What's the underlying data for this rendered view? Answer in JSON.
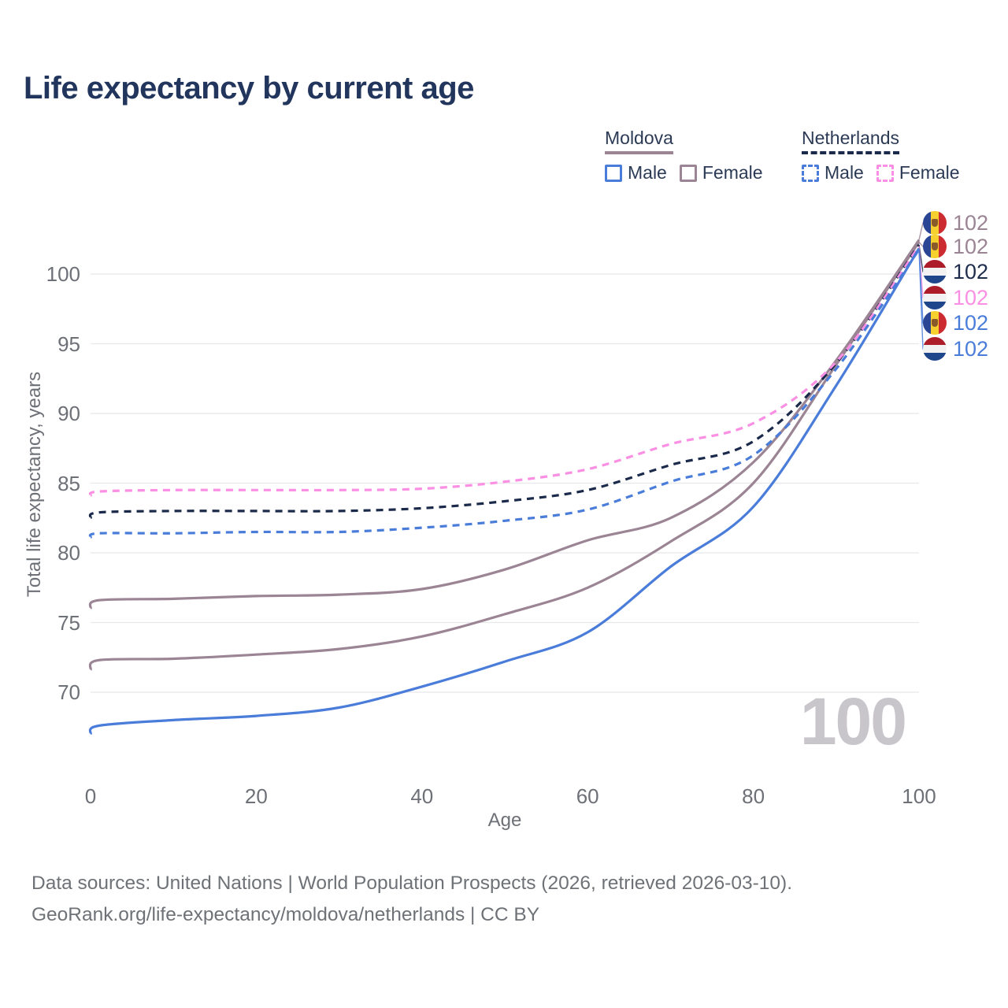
{
  "title": "Life expectancy by current age",
  "legend": {
    "groups": [
      {
        "label": "Moldova",
        "line_style": "solid",
        "underline_color": "#9b8494",
        "items": [
          {
            "label": "Male",
            "color": "#4a7cd9",
            "dashed": false
          },
          {
            "label": "Female",
            "color": "#9b8494",
            "dashed": false
          }
        ]
      },
      {
        "label": "Netherlands",
        "line_style": "dashed",
        "underline_color": "#1b2a4a",
        "items": [
          {
            "label": "Male",
            "color": "#4a7cd9",
            "dashed": true
          },
          {
            "label": "Female",
            "color": "#fa8fe3",
            "dashed": true
          }
        ]
      }
    ]
  },
  "chart_data": {
    "type": "line",
    "title": "Life expectancy by current age",
    "xlabel": "Age",
    "ylabel": "Total life expectancy, years",
    "x_ticks": [
      0,
      20,
      40,
      60,
      80,
      100
    ],
    "y_ticks": [
      100,
      95,
      90,
      85,
      80,
      75,
      70
    ],
    "xlim": [
      0,
      100
    ],
    "ylim": [
      65.5,
      103
    ],
    "grid": "horizontal",
    "legend_position": "top-right",
    "x": [
      0,
      1,
      10,
      20,
      30,
      40,
      50,
      60,
      70,
      80,
      90,
      100
    ],
    "series": [
      {
        "name": "Moldova Female",
        "country": "moldova",
        "sex": "female",
        "color": "#9b8494",
        "dash": false,
        "values": [
          76.0,
          76.6,
          76.7,
          76.9,
          77.0,
          77.4,
          78.8,
          80.9,
          82.5,
          86.5,
          93.8,
          102.45
        ]
      },
      {
        "name": "Moldova Total",
        "country": "moldova",
        "sex": "total",
        "color": "#9b8494",
        "dash": false,
        "values": [
          71.6,
          72.3,
          72.4,
          72.7,
          73.1,
          74.0,
          75.6,
          77.5,
          80.8,
          85.0,
          93.5,
          102.3
        ]
      },
      {
        "name": "Netherlands Total",
        "country": "netherlands",
        "sex": "total",
        "color": "#1b2a4a",
        "dash": true,
        "values": [
          82.5,
          82.9,
          83.0,
          83.0,
          83.0,
          83.2,
          83.7,
          84.5,
          86.3,
          88.0,
          93.6,
          102.1
        ]
      },
      {
        "name": "Netherlands Female",
        "country": "netherlands",
        "sex": "female",
        "color": "#fa8fe3",
        "dash": true,
        "values": [
          84.1,
          84.4,
          84.5,
          84.5,
          84.5,
          84.6,
          85.1,
          86.0,
          87.8,
          89.3,
          93.7,
          102.0
        ]
      },
      {
        "name": "Moldova Male",
        "country": "moldova",
        "sex": "male",
        "color": "#4a7cd9",
        "dash": false,
        "values": [
          67.0,
          67.6,
          68.0,
          68.3,
          68.9,
          70.4,
          72.2,
          74.3,
          79.0,
          83.3,
          92.0,
          101.85
        ]
      },
      {
        "name": "Netherlands Male",
        "country": "netherlands",
        "sex": "male",
        "color": "#4a7cd9",
        "dash": true,
        "values": [
          81.1,
          81.4,
          81.4,
          81.5,
          81.5,
          81.8,
          82.3,
          83.1,
          85.1,
          87.0,
          93.2,
          101.75
        ]
      }
    ],
    "end_labels": [
      {
        "flag": "moldova",
        "value": "102",
        "color": "#9b8494"
      },
      {
        "flag": "moldova",
        "value": "102",
        "color": "#9b8494"
      },
      {
        "flag": "netherlands",
        "value": "102",
        "color": "#1f2d4d"
      },
      {
        "flag": "netherlands",
        "value": "102",
        "color": "#fa8fe3"
      },
      {
        "flag": "moldova",
        "value": "102",
        "color": "#4a7cd9"
      },
      {
        "flag": "netherlands",
        "value": "102",
        "color": "#4a7cd9"
      }
    ],
    "age_indicator": "100"
  },
  "footer": {
    "line1": "Data sources: United Nations | World Population Prospects (2026, retrieved 2026-03-10).",
    "line2": "GeoRank.org/life-expectancy/moldova/netherlands | CC BY"
  }
}
